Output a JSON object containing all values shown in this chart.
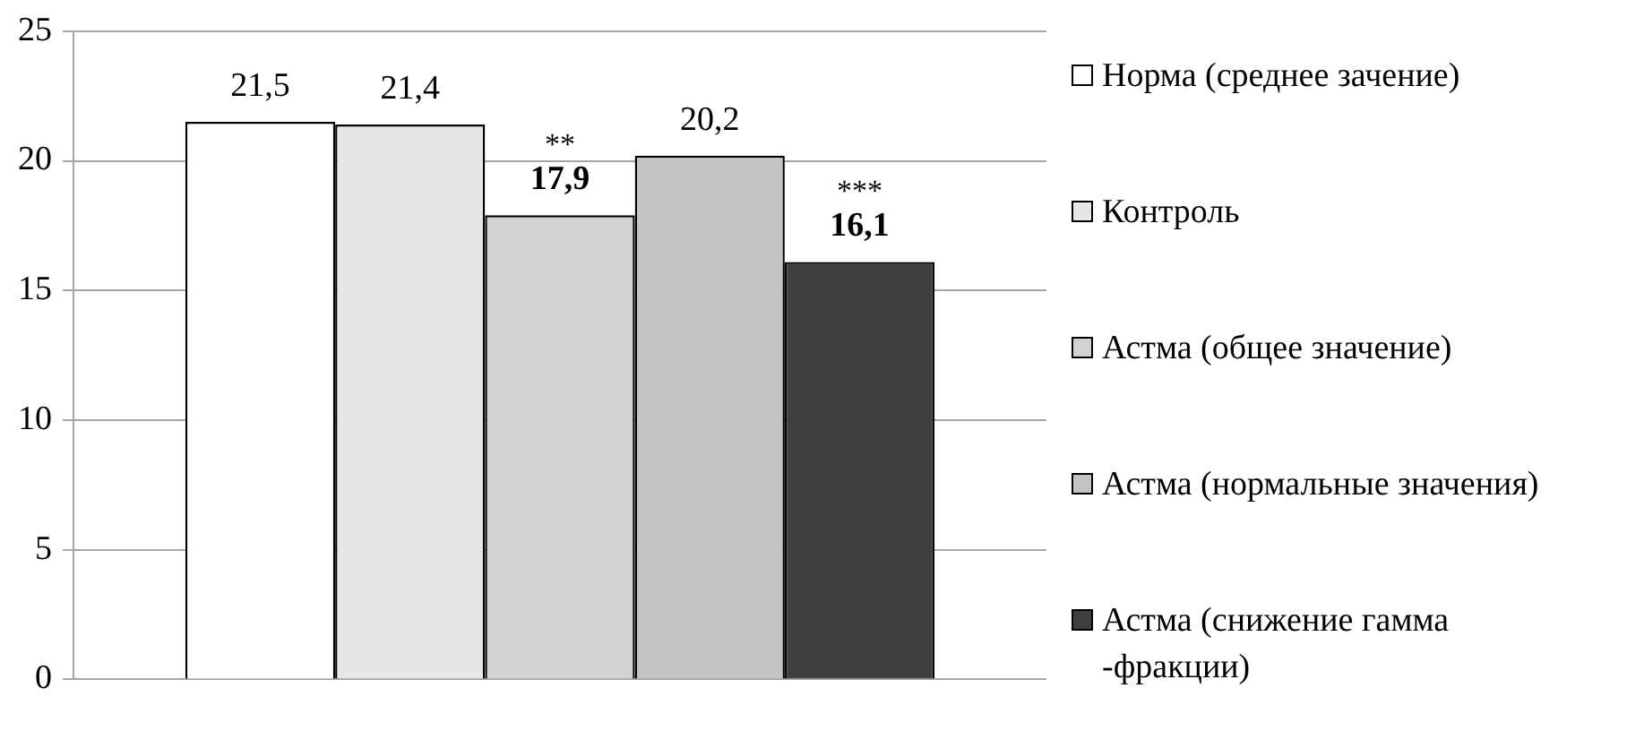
{
  "chart_data": {
    "type": "bar",
    "categories": [
      null
    ],
    "series": [
      {
        "name": "Норма (среднее зачение)",
        "color": "#ffffff",
        "values": [
          21.5
        ],
        "value_labels": [
          "21,5"
        ]
      },
      {
        "name": "Контроль",
        "color": "#e6e6e6",
        "values": [
          21.4
        ],
        "value_labels": [
          "21,4"
        ]
      },
      {
        "name": "Астма (общее значение)",
        "color": "#d2d2d2",
        "values": [
          17.9
        ],
        "value_labels": [
          "17,9"
        ]
      },
      {
        "name": "Астма (нормальные значения)",
        "color": "#c4c4c4",
        "values": [
          20.2
        ],
        "value_labels": [
          "20,2"
        ]
      },
      {
        "name": "Астма (снижение гамма -фракции)",
        "color": "#404040",
        "values": [
          16.1
        ],
        "value_labels": [
          "16,1"
        ]
      }
    ],
    "ylim": [
      0,
      25
    ],
    "yticks": [
      0,
      5,
      10,
      15,
      20,
      25
    ],
    "grid": "y",
    "legend": "right",
    "annotations": [
      {
        "text": "**",
        "y": 17.9
      },
      {
        "text": "***",
        "y": 16.1
      }
    ]
  }
}
